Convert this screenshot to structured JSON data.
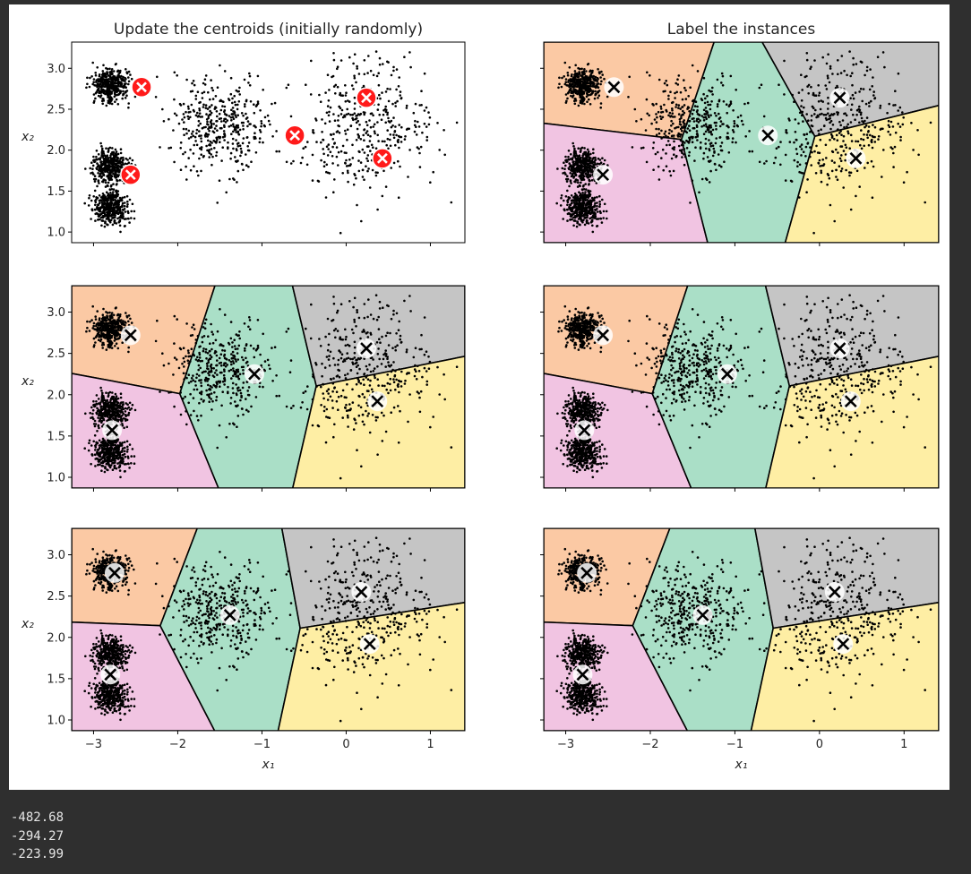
{
  "figure": {
    "background": "#ffffff",
    "page_background": "#2f2f2f"
  },
  "region_colors": {
    "orange": "#fbc9a4",
    "pink": "#f1c4e2",
    "green": "#aadfc7",
    "gray": "#c5c5c5",
    "yellow": "#feeea4"
  },
  "dataset": {
    "samples_per_blob": 400,
    "blobs": [
      {
        "center": [
          0.2,
          2.3
        ],
        "std": 0.4
      },
      {
        "center": [
          -1.5,
          2.3
        ],
        "std": 0.3
      },
      {
        "center": [
          -2.8,
          1.8
        ],
        "std": 0.1
      },
      {
        "center": [
          -2.8,
          2.8
        ],
        "std": 0.1
      },
      {
        "center": [
          -2.8,
          1.3
        ],
        "std": 0.1
      }
    ]
  },
  "chart_data": [
    {
      "type": "scatter",
      "title": "Update the centroids (initially randomly)",
      "xlabel": "",
      "ylabel": "x₂",
      "xlim": [
        -3.26,
        1.41
      ],
      "ylim": [
        0.87,
        3.32
      ],
      "xticks": [
        "−3",
        "−2",
        "−1",
        "0",
        "1"
      ],
      "yticks": [
        "1.0",
        "1.5",
        "2.0",
        "2.5",
        "3.0"
      ],
      "show_xticklabels": false,
      "show_yticklabels": true,
      "show_regions": false,
      "centroid_style": "red",
      "centroids": [
        {
          "x": -2.43,
          "y": 2.77,
          "color": "orange"
        },
        {
          "x": -2.56,
          "y": 1.7,
          "color": "pink"
        },
        {
          "x": -0.61,
          "y": 2.18,
          "color": "green"
        },
        {
          "x": 0.24,
          "y": 2.64,
          "color": "gray"
        },
        {
          "x": 0.43,
          "y": 1.9,
          "color": "yellow"
        }
      ]
    },
    {
      "type": "scatter",
      "title": "Label the instances",
      "xlabel": "",
      "ylabel": "",
      "xlim": [
        -3.26,
        1.41
      ],
      "ylim": [
        0.87,
        3.32
      ],
      "xticks": [
        "−3",
        "−2",
        "−1",
        "0",
        "1"
      ],
      "yticks": [
        "1.0",
        "1.5",
        "2.0",
        "2.5",
        "3.0"
      ],
      "show_xticklabels": false,
      "show_yticklabels": false,
      "show_regions": true,
      "centroid_style": "white",
      "centroids": [
        {
          "x": -2.43,
          "y": 2.77,
          "color": "orange"
        },
        {
          "x": -2.56,
          "y": 1.7,
          "color": "pink"
        },
        {
          "x": -0.61,
          "y": 2.18,
          "color": "green"
        },
        {
          "x": 0.24,
          "y": 2.64,
          "color": "gray"
        },
        {
          "x": 0.43,
          "y": 1.9,
          "color": "yellow"
        }
      ]
    },
    {
      "type": "scatter",
      "title": "",
      "xlabel": "",
      "ylabel": "x₂",
      "xlim": [
        -3.26,
        1.41
      ],
      "ylim": [
        0.87,
        3.32
      ],
      "xticks": [
        "−3",
        "−2",
        "−1",
        "0",
        "1"
      ],
      "yticks": [
        "1.0",
        "1.5",
        "2.0",
        "2.5",
        "3.0"
      ],
      "show_xticklabels": false,
      "show_yticklabels": true,
      "show_regions": true,
      "centroid_style": "white",
      "centroids": [
        {
          "x": -2.56,
          "y": 2.72,
          "color": "orange"
        },
        {
          "x": -2.78,
          "y": 1.57,
          "color": "pink"
        },
        {
          "x": -1.09,
          "y": 2.25,
          "color": "green"
        },
        {
          "x": 0.24,
          "y": 2.56,
          "color": "gray"
        },
        {
          "x": 0.37,
          "y": 1.92,
          "color": "yellow"
        }
      ]
    },
    {
      "type": "scatter",
      "title": "",
      "xlabel": "",
      "ylabel": "",
      "xlim": [
        -3.26,
        1.41
      ],
      "ylim": [
        0.87,
        3.32
      ],
      "xticks": [
        "−3",
        "−2",
        "−1",
        "0",
        "1"
      ],
      "yticks": [
        "1.0",
        "1.5",
        "2.0",
        "2.5",
        "3.0"
      ],
      "show_xticklabels": false,
      "show_yticklabels": false,
      "show_regions": true,
      "centroid_style": "white",
      "centroids": [
        {
          "x": -2.56,
          "y": 2.72,
          "color": "orange"
        },
        {
          "x": -2.78,
          "y": 1.57,
          "color": "pink"
        },
        {
          "x": -1.09,
          "y": 2.25,
          "color": "green"
        },
        {
          "x": 0.24,
          "y": 2.56,
          "color": "gray"
        },
        {
          "x": 0.37,
          "y": 1.92,
          "color": "yellow"
        }
      ]
    },
    {
      "type": "scatter",
      "title": "",
      "xlabel": "x₁",
      "ylabel": "x₂",
      "xlim": [
        -3.26,
        1.41
      ],
      "ylim": [
        0.87,
        3.32
      ],
      "xticks": [
        "−3",
        "−2",
        "−1",
        "0",
        "1"
      ],
      "yticks": [
        "1.0",
        "1.5",
        "2.0",
        "2.5",
        "3.0"
      ],
      "show_xticklabels": true,
      "show_yticklabels": true,
      "show_regions": true,
      "centroid_style": "white",
      "centroids": [
        {
          "x": -2.75,
          "y": 2.78,
          "color": "orange"
        },
        {
          "x": -2.8,
          "y": 1.55,
          "color": "pink"
        },
        {
          "x": -1.38,
          "y": 2.27,
          "color": "green"
        },
        {
          "x": 0.18,
          "y": 2.55,
          "color": "gray"
        },
        {
          "x": 0.28,
          "y": 1.92,
          "color": "yellow"
        }
      ]
    },
    {
      "type": "scatter",
      "title": "",
      "xlabel": "x₁",
      "ylabel": "",
      "xlim": [
        -3.26,
        1.41
      ],
      "ylim": [
        0.87,
        3.32
      ],
      "xticks": [
        "−3",
        "−2",
        "−1",
        "0",
        "1"
      ],
      "yticks": [
        "1.0",
        "1.5",
        "2.0",
        "2.5",
        "3.0"
      ],
      "show_xticklabels": true,
      "show_yticklabels": false,
      "show_regions": true,
      "centroid_style": "white",
      "centroids": [
        {
          "x": -2.75,
          "y": 2.78,
          "color": "orange"
        },
        {
          "x": -2.8,
          "y": 1.55,
          "color": "pink"
        },
        {
          "x": -1.38,
          "y": 2.27,
          "color": "green"
        },
        {
          "x": 0.18,
          "y": 2.55,
          "color": "gray"
        },
        {
          "x": 0.28,
          "y": 1.92,
          "color": "yellow"
        }
      ]
    }
  ],
  "output": {
    "lines": [
      "-482.68",
      "-294.27",
      "-223.99"
    ]
  }
}
